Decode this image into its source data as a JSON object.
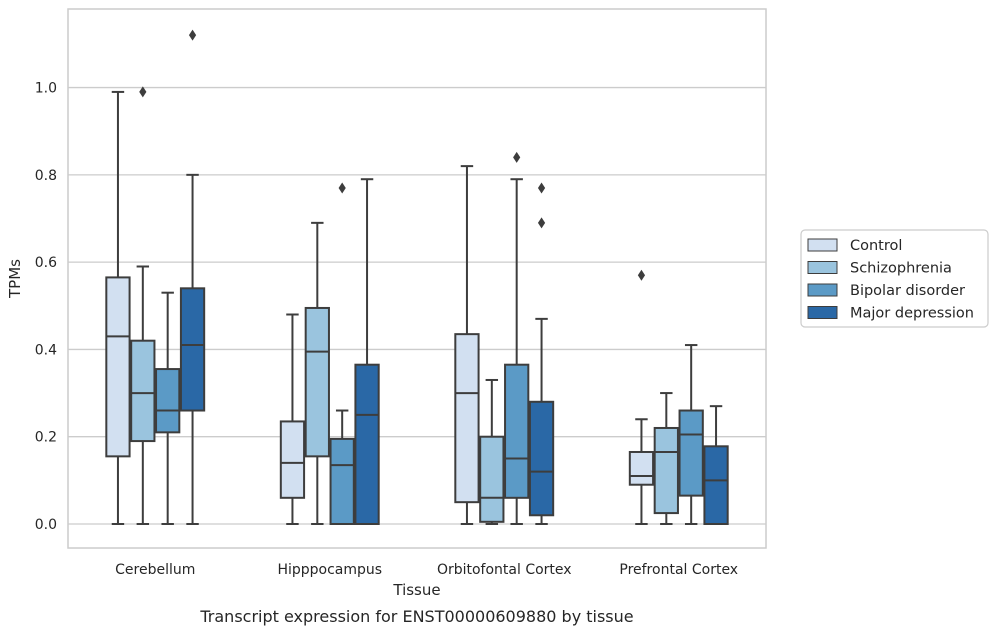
{
  "chart_data": {
    "type": "box",
    "ylabel": "TPMs",
    "xlabel": "Tissue",
    "caption": "Transcript expression for ENST00000609880 by tissue",
    "ylim": [
      -0.055,
      1.18
    ],
    "yticks": [
      0.0,
      0.2,
      0.4,
      0.6,
      0.8,
      1.0
    ],
    "ytick_labels": [
      "0.0",
      "0.2",
      "0.4",
      "0.6",
      "0.8",
      "1.0"
    ],
    "grid": "horizontal",
    "legend_position": "right",
    "categories": [
      "Cerebellum",
      "Hipppocampus",
      "Orbitofontal Cortex",
      "Prefrontal Cortex"
    ],
    "series": [
      {
        "name": "Control",
        "color": "#d2e0f1",
        "boxes": [
          {
            "whisker_low": 0.0,
            "q1": 0.155,
            "median": 0.43,
            "q3": 0.565,
            "whisker_high": 0.99,
            "outliers": []
          },
          {
            "whisker_low": 0.0,
            "q1": 0.06,
            "median": 0.14,
            "q3": 0.235,
            "whisker_high": 0.48,
            "outliers": []
          },
          {
            "whisker_low": 0.0,
            "q1": 0.05,
            "median": 0.3,
            "q3": 0.435,
            "whisker_high": 0.82,
            "outliers": []
          },
          {
            "whisker_low": 0.0,
            "q1": 0.09,
            "median": 0.11,
            "q3": 0.165,
            "whisker_high": 0.24,
            "outliers": [
              0.57
            ]
          }
        ]
      },
      {
        "name": "Schizophrenia",
        "color": "#9ac4de",
        "boxes": [
          {
            "whisker_low": 0.0,
            "q1": 0.19,
            "median": 0.3,
            "q3": 0.42,
            "whisker_high": 0.59,
            "outliers": [
              0.99
            ]
          },
          {
            "whisker_low": 0.0,
            "q1": 0.155,
            "median": 0.395,
            "q3": 0.495,
            "whisker_high": 0.69,
            "outliers": []
          },
          {
            "whisker_low": 0.0,
            "q1": 0.005,
            "median": 0.06,
            "q3": 0.2,
            "whisker_high": 0.33,
            "outliers": []
          },
          {
            "whisker_low": 0.0,
            "q1": 0.025,
            "median": 0.165,
            "q3": 0.22,
            "whisker_high": 0.3,
            "outliers": []
          }
        ]
      },
      {
        "name": "Bipolar disorder",
        "color": "#5b9ac6",
        "boxes": [
          {
            "whisker_low": 0.0,
            "q1": 0.21,
            "median": 0.26,
            "q3": 0.355,
            "whisker_high": 0.53,
            "outliers": []
          },
          {
            "whisker_low": 0.0,
            "q1": 0.0,
            "median": 0.135,
            "q3": 0.195,
            "whisker_high": 0.26,
            "outliers": [
              0.77
            ]
          },
          {
            "whisker_low": 0.0,
            "q1": 0.06,
            "median": 0.15,
            "q3": 0.365,
            "whisker_high": 0.79,
            "outliers": [
              0.84
            ]
          },
          {
            "whisker_low": 0.0,
            "q1": 0.065,
            "median": 0.205,
            "q3": 0.26,
            "whisker_high": 0.41,
            "outliers": []
          }
        ]
      },
      {
        "name": "Major depression",
        "color": "#2a68a6",
        "boxes": [
          {
            "whisker_low": 0.0,
            "q1": 0.26,
            "median": 0.41,
            "q3": 0.54,
            "whisker_high": 0.8,
            "outliers": [
              1.12
            ]
          },
          {
            "whisker_low": 0.0,
            "q1": 0.0,
            "median": 0.25,
            "q3": 0.365,
            "whisker_high": 0.79,
            "outliers": []
          },
          {
            "whisker_low": 0.0,
            "q1": 0.02,
            "median": 0.12,
            "q3": 0.28,
            "whisker_high": 0.47,
            "outliers": [
              0.69,
              0.77
            ]
          },
          {
            "whisker_low": 0.0,
            "q1": 0.0,
            "median": 0.1,
            "q3": 0.178,
            "whisker_high": 0.27,
            "outliers": []
          }
        ]
      }
    ]
  }
}
